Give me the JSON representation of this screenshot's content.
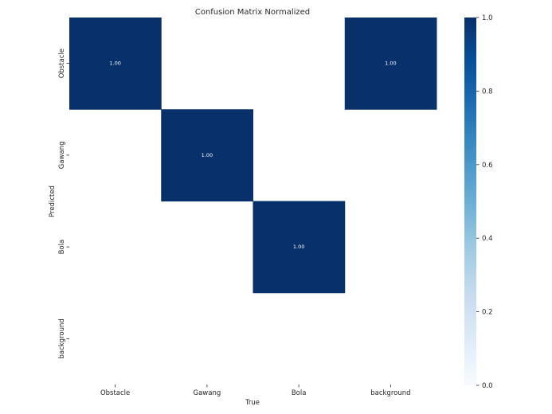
{
  "chart_data": {
    "type": "heatmap",
    "title": "Confusion Matrix Normalized",
    "xlabel": "True",
    "ylabel": "Predicted",
    "x_categories": [
      "Obstacle",
      "Gawang",
      "Bola",
      "background"
    ],
    "y_categories": [
      "Obstacle",
      "Gawang",
      "Bola",
      "background"
    ],
    "values": [
      [
        1.0,
        null,
        null,
        1.0
      ],
      [
        null,
        1.0,
        null,
        null
      ],
      [
        null,
        null,
        1.0,
        null
      ],
      [
        null,
        null,
        null,
        null
      ]
    ],
    "cell_labels": [
      [
        "1.00",
        "",
        "",
        "1.00"
      ],
      [
        "",
        "1.00",
        "",
        ""
      ],
      [
        "",
        "",
        "1.00",
        ""
      ],
      [
        "",
        "",
        "",
        ""
      ]
    ],
    "colorbar": {
      "range": [
        0.0,
        1.0
      ],
      "ticks": [
        0.0,
        0.2,
        0.4,
        0.6,
        0.8,
        1.0
      ],
      "tick_labels": [
        "0.0",
        "0.2",
        "0.4",
        "0.6",
        "0.8",
        "1.0"
      ],
      "colormap": "Blues",
      "color_low": "#f7fbff",
      "color_high": "#08306b"
    },
    "grid": false
  }
}
